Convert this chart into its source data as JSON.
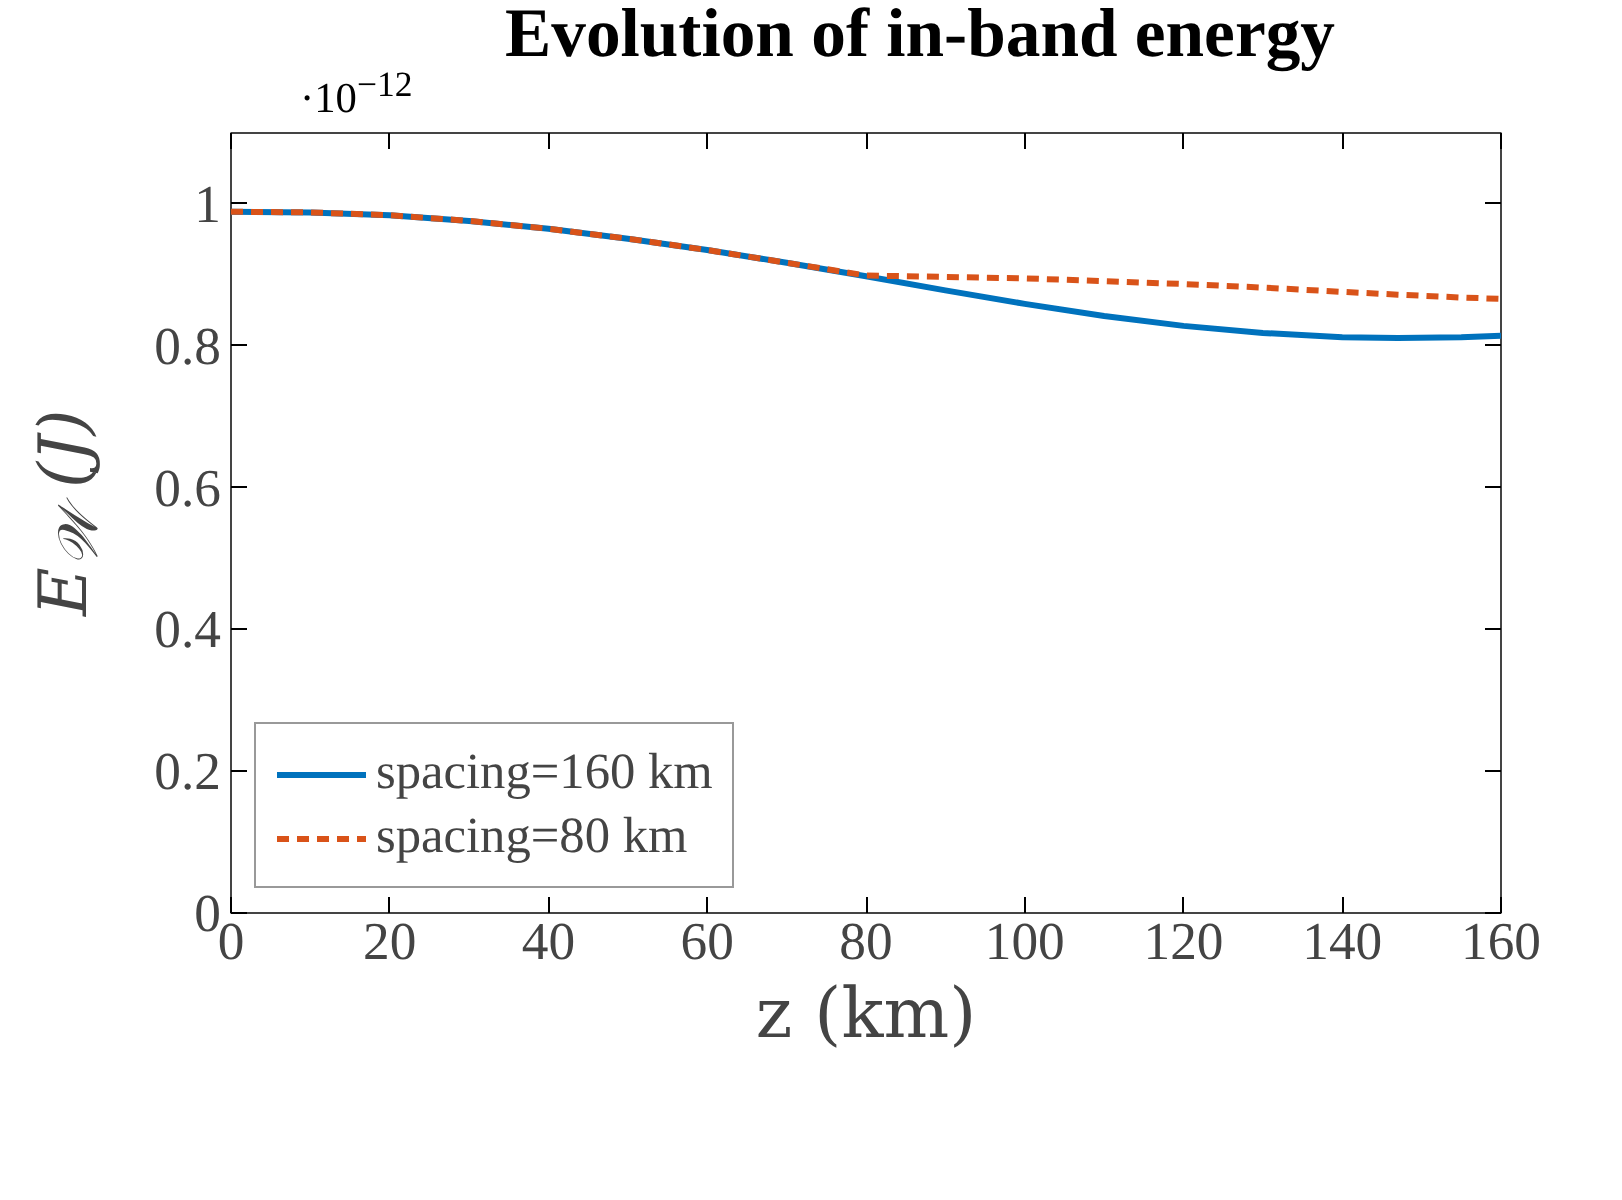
{
  "chart_data": {
    "type": "line",
    "title": "Evolution of in-band energy",
    "xlabel": "z (km)",
    "ylabel": "E$_{𝒲}$ (J)",
    "annotations": [
      "·10$^{−12}$"
    ],
    "x": [
      0,
      10,
      20,
      30,
      40,
      50,
      60,
      70,
      80,
      90,
      100,
      110,
      120,
      130,
      140,
      147,
      155,
      160
    ],
    "series": [
      {
        "name": "spacing=160 km",
        "color": "#0072bd",
        "line_style": "solid",
        "values": [
          0.989,
          0.988,
          0.984,
          0.976,
          0.965,
          0.951,
          0.935,
          0.917,
          0.898,
          0.878,
          0.859,
          0.842,
          0.828,
          0.818,
          0.812,
          0.811,
          0.812,
          0.814
        ]
      },
      {
        "name": "spacing=80 km",
        "color": "#d95319",
        "line_style": "dashed",
        "values": [
          0.989,
          0.988,
          0.984,
          0.976,
          0.965,
          0.951,
          0.935,
          0.917,
          0.899,
          0.897,
          0.895,
          0.891,
          0.887,
          0.882,
          0.876,
          0.872,
          0.868,
          0.866
        ]
      }
    ],
    "xlim": [
      0,
      160
    ],
    "ylim": [
      0,
      1.1
    ],
    "xticks": [
      0,
      20,
      40,
      60,
      80,
      100,
      120,
      140,
      160
    ],
    "yticks": [
      0,
      0.2,
      0.4,
      0.6,
      0.8,
      1
    ],
    "grid": false,
    "legend": "bottom left",
    "marker": "none"
  }
}
